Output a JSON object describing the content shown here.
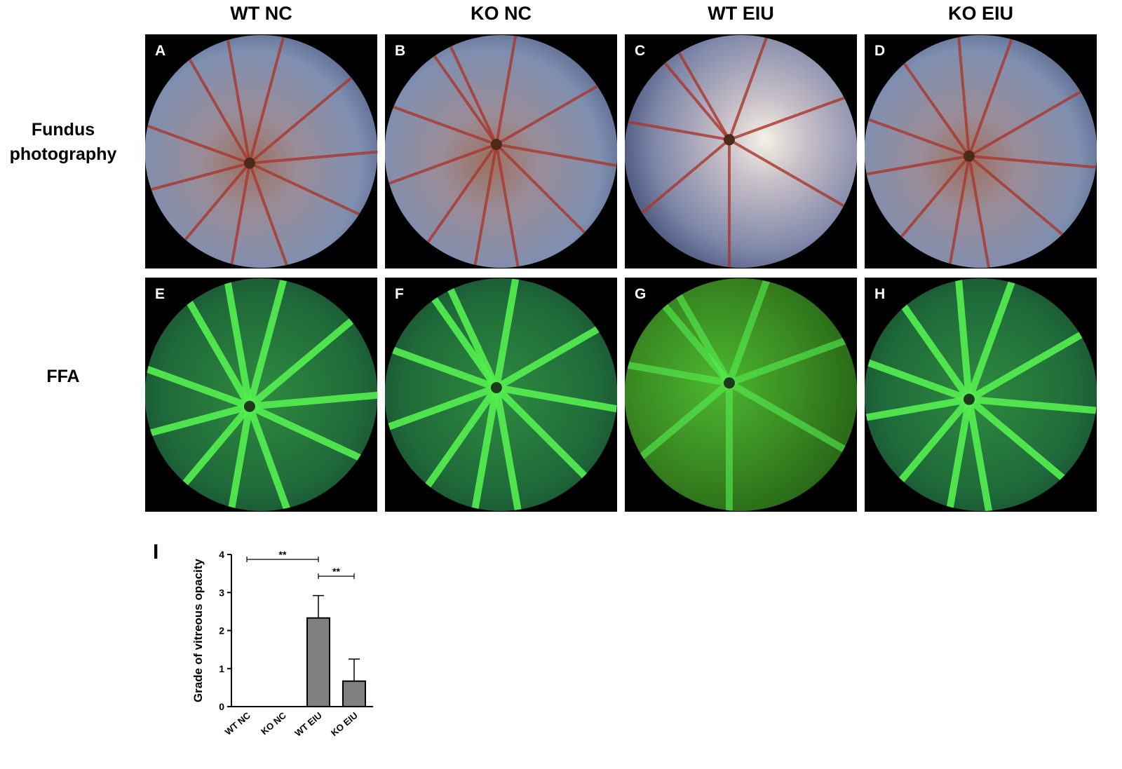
{
  "columns": [
    "WT NC",
    "KO NC",
    "WT EIU",
    "KO EIU"
  ],
  "rows": [
    "Fundus photography",
    "FFA"
  ],
  "panels": [
    "A",
    "B",
    "C",
    "D",
    "E",
    "F",
    "G",
    "H"
  ],
  "chart_data": {
    "type": "bar",
    "panel_label": "I",
    "ylabel": "Grade of vitreous opacity",
    "categories": [
      "WT NC",
      "KO NC",
      "WT EIU",
      "KO EIU"
    ],
    "values": [
      0,
      0,
      2.33,
      0.67
    ],
    "errors": [
      0,
      0,
      0.59,
      0.58
    ],
    "color": "#808080",
    "ylim": [
      0,
      4
    ],
    "yticks": [
      0,
      1,
      2,
      3,
      4
    ],
    "annotations": [
      "**",
      "**"
    ]
  }
}
